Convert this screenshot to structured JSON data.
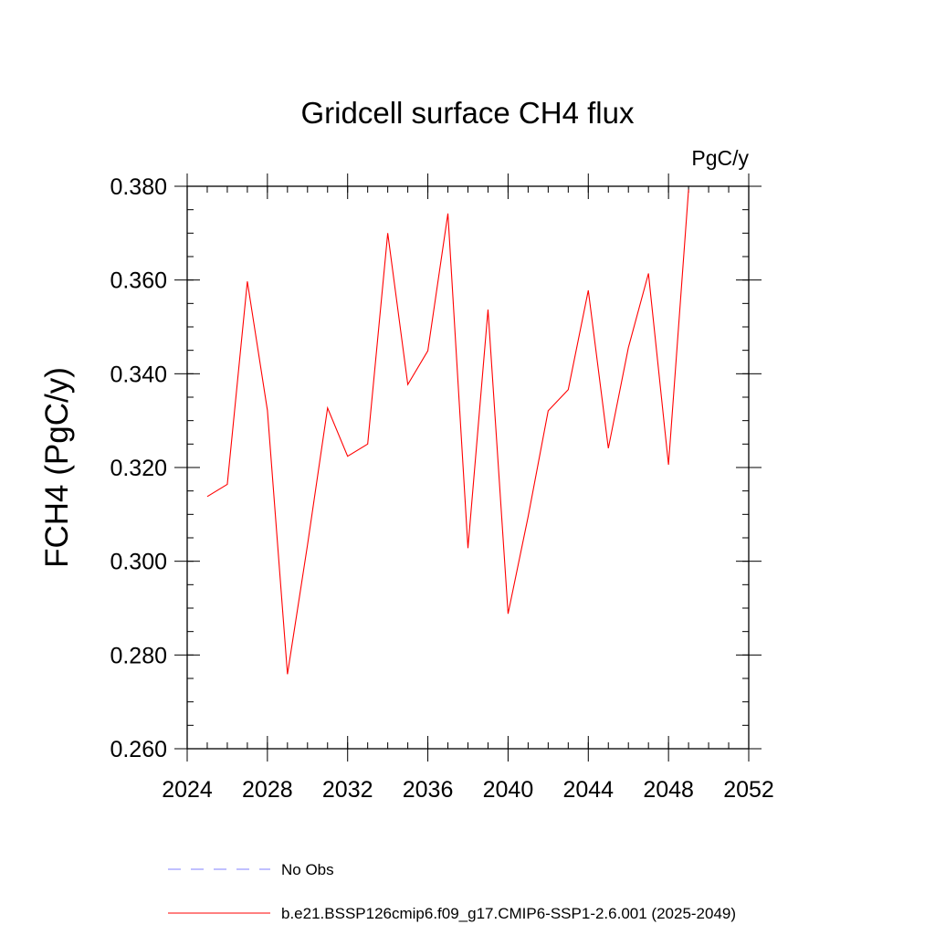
{
  "chart_data": {
    "type": "line",
    "title": "Gridcell surface CH4 flux",
    "units_label": "PgC/y",
    "ylabel": "FCH4  (PgC/y)",
    "xlabel": "",
    "xlim": [
      2024,
      2052
    ],
    "ylim": [
      0.26,
      0.38
    ],
    "x_ticks": [
      2024,
      2028,
      2032,
      2036,
      2040,
      2044,
      2048,
      2052
    ],
    "x_tick_labels": [
      "2024",
      "2028",
      "2032",
      "2036",
      "2040",
      "2044",
      "2048",
      "2052"
    ],
    "y_ticks": [
      0.26,
      0.28,
      0.3,
      0.32,
      0.34,
      0.36,
      0.38
    ],
    "y_tick_labels": [
      "0.260",
      "0.280",
      "0.300",
      "0.320",
      "0.340",
      "0.360",
      "0.380"
    ],
    "x_minor_step": 1,
    "y_minor_step": 0.005,
    "grid": false,
    "legend_position": "bottom",
    "series": [
      {
        "name": "b.e21.BSSP126cmip6.f09_g17.CMIP6-SSP1-2.6.001 (2025-2049)",
        "color": "#ff0000",
        "style": "solid",
        "x": [
          2025,
          2026,
          2027,
          2028,
          2029,
          2030,
          2031,
          2032,
          2033,
          2034,
          2035,
          2036,
          2037,
          2038,
          2039,
          2040,
          2041,
          2042,
          2043,
          2044,
          2045,
          2046,
          2047,
          2048,
          2049
        ],
        "values": [
          0.3138,
          0.3164,
          0.3597,
          0.3322,
          0.2759,
          0.3035,
          0.3327,
          0.3224,
          0.325,
          0.37,
          0.3377,
          0.3449,
          0.3742,
          0.3028,
          0.3537,
          0.2888,
          0.3095,
          0.3321,
          0.3366,
          0.3578,
          0.3241,
          0.3456,
          0.3614,
          0.3206,
          0.3793
        ]
      }
    ],
    "legend_entries": [
      {
        "label": "No Obs",
        "color": "#8080ff",
        "style": "dashed"
      },
      {
        "label": "b.e21.BSSP126cmip6.f09_g17.CMIP6-SSP1-2.6.001 (2025-2049)",
        "color": "#ff0000",
        "style": "solid"
      }
    ]
  }
}
